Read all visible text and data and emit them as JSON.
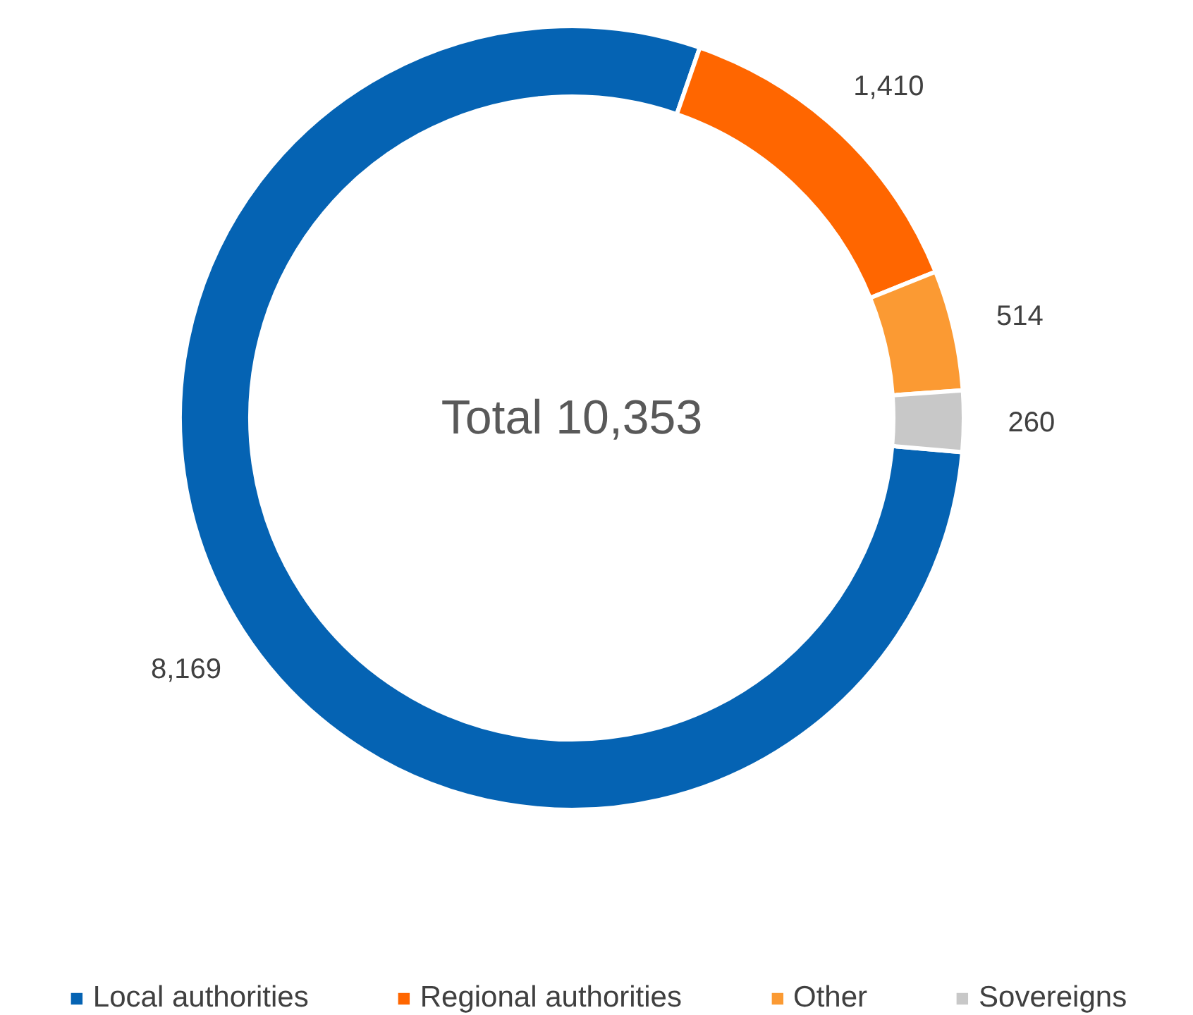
{
  "chart_data": {
    "type": "donut",
    "categories": [
      "Local authorities",
      "Regional authorities",
      "Other",
      "Sovereigns"
    ],
    "values": [
      8169,
      1410,
      514,
      260
    ],
    "colors": [
      "#0563b3",
      "#ff6600",
      "#fb9a33",
      "#c8c8c8"
    ],
    "value_labels": [
      "8,169",
      "1,410",
      "514",
      "260"
    ],
    "legend": "bottom",
    "annotations": [
      "Total 10,353"
    ]
  }
}
